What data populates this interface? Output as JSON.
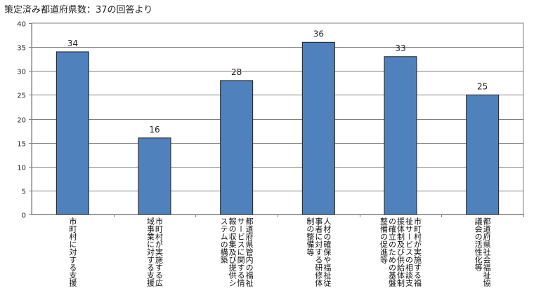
{
  "chart_data": {
    "type": "bar",
    "title": "策定済み都道府県数：37の回答より",
    "categories": [
      [
        "市町村に対する支援"
      ],
      [
        "市町村が実施する広",
        "域事業に対する支援"
      ],
      [
        "都道府県管内の福祉",
        "サービスに関する情",
        "報の収集及び提供シ",
        "ステムの構築"
      ],
      [
        "人材の確保や福祉従",
        "事者に対する研修体",
        "制の整備等"
      ],
      [
        "市町村が実施する福",
        "祉サービスの相談支",
        "援体制及び供給体制",
        "の確立のための基盤",
        "整備の促進等"
      ],
      [
        "都道府県社会福祉協",
        "議会の活性化等"
      ]
    ],
    "values": [
      34,
      16,
      28,
      36,
      33,
      25
    ],
    "ylim": [
      0,
      40
    ],
    "yticks": [
      0,
      5,
      10,
      15,
      20,
      25,
      30,
      35,
      40
    ],
    "grid": true,
    "legend": "none",
    "colors": {
      "bar": "#4f81bd",
      "bar_edge": "#1f1f1f",
      "grid": "#808080",
      "axis": "#808080"
    }
  }
}
